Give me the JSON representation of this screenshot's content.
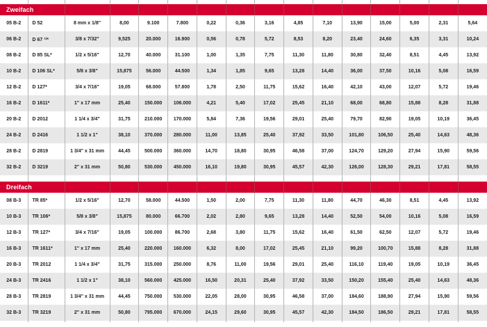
{
  "colors": {
    "accent_red": "#d40030",
    "header_divider": "#ac3a47",
    "row_alt": "#e8e8e8",
    "grid_line": "#b3b3b3",
    "text": "#1c1c1c",
    "header_text": "#ffffff"
  },
  "sections": [
    {
      "label": "Zweifach",
      "rows": [
        [
          "05 B-2",
          "D 52",
          "8 mm x 1/8\"",
          "8,00",
          "9.100",
          "7.800",
          "0,22",
          "0,36",
          "3,16",
          "4,85",
          "7,10",
          "13,90",
          "15,00",
          "5,00",
          "2,31",
          "5,64"
        ],
        [
          "06 B-2",
          "D 67 ¹⁾*",
          "3/8 x 7/32\"",
          "9,525",
          "20.000",
          "16.900",
          "0,56",
          "0,78",
          "5,72",
          "8,53",
          "8,20",
          "23,40",
          "24,60",
          "6,35",
          "3,31",
          "10,24"
        ],
        [
          "08 B-2",
          "D 85 SL*",
          "1/2 x 5/16\"",
          "12,70",
          "40.000",
          "31.100",
          "1,00",
          "1,35",
          "7,75",
          "11,30",
          "11,80",
          "30,80",
          "32,40",
          "8,51",
          "4,45",
          "13,92"
        ],
        [
          "10 B-2",
          "D 106 SL*",
          "5/8 x 3/8\"",
          "15,875",
          "56.000",
          "44.500",
          "1,34",
          "1,85",
          "9,65",
          "13,28",
          "14,40",
          "36,00",
          "37,50",
          "10,16",
          "5,08",
          "16,59"
        ],
        [
          "12 B-2",
          "D 127*",
          "3/4 x 7/16\"",
          "19,05",
          "68.000",
          "57.800",
          "1,78",
          "2,50",
          "11,75",
          "15,62",
          "16,40",
          "42,10",
          "43,00",
          "12,07",
          "5,72",
          "19,46"
        ],
        [
          "16 B-2",
          "D 1611*",
          "1\" x 17 mm",
          "25,40",
          "150.000",
          "106.000",
          "4,21",
          "5,40",
          "17,02",
          "25,45",
          "21,10",
          "68,00",
          "68,80",
          "15,88",
          "8,28",
          "31,88"
        ],
        [
          "20 B-2",
          "D 2012",
          "1 1/4 x 3/4\"",
          "31,75",
          "210.000",
          "170.000",
          "5,84",
          "7,36",
          "19,56",
          "29,01",
          "25,40",
          "79,70",
          "82,90",
          "19,05",
          "10,19",
          "36,45"
        ],
        [
          "24 B-2",
          "D 2416",
          "1 1/2 x 1\"",
          "38,10",
          "370.000",
          "280.000",
          "11,00",
          "13,85",
          "25,40",
          "37,92",
          "33,50",
          "101,80",
          "106,50",
          "25,40",
          "14,63",
          "48,36"
        ],
        [
          "28 B-2",
          "D 2819",
          "1 3/4\" x 31 mm",
          "44,45",
          "500.000",
          "360.000",
          "14,70",
          "18,80",
          "30,95",
          "46,58",
          "37,00",
          "124,70",
          "129,20",
          "27,94",
          "15,90",
          "59,56"
        ],
        [
          "32 B-2",
          "D 3219",
          "2\" x 31 mm",
          "50,80",
          "530.000",
          "450.000",
          "16,10",
          "19,80",
          "30,95",
          "45,57",
          "42,30",
          "126,00",
          "128,30",
          "29,21",
          "17,81",
          "58,55"
        ]
      ]
    },
    {
      "label": "Dreifach",
      "rows": [
        [
          "08 B-3",
          "TR 85*",
          "1/2 x 5/16\"",
          "12,70",
          "58.000",
          "44.500",
          "1,50",
          "2,00",
          "7,75",
          "11,30",
          "11,80",
          "44,70",
          "46,30",
          "8,51",
          "4,45",
          "13,92"
        ],
        [
          "10 B-3",
          "TR 106*",
          "5/8 x 3/8\"",
          "15,875",
          "80.000",
          "66.700",
          "2,02",
          "2,80",
          "9,65",
          "13,28",
          "14,40",
          "52,50",
          "54,00",
          "10,16",
          "5,08",
          "16,59"
        ],
        [
          "12 B-3",
          "TR 127*",
          "3/4 x 7/16\"",
          "19,05",
          "100.000",
          "86.700",
          "2,68",
          "3,80",
          "11,75",
          "15,62",
          "16,40",
          "61,50",
          "62,50",
          "12,07",
          "5,72",
          "19,46"
        ],
        [
          "16 B-3",
          "TR 1611*",
          "1\" x 17 mm",
          "25,40",
          "220.000",
          "160.000",
          "6,32",
          "8,00",
          "17,02",
          "25,45",
          "21,10",
          "99,20",
          "100,70",
          "15,88",
          "8,28",
          "31,88"
        ],
        [
          "20 B-3",
          "TR 2012",
          "1 1/4 x 3/4\"",
          "31,75",
          "315.000",
          "250.000",
          "8,76",
          "11,00",
          "19,56",
          "29,01",
          "25,40",
          "116,10",
          "119,40",
          "19,05",
          "10,19",
          "36,45"
        ],
        [
          "24 B-3",
          "TR 2416",
          "1 1/2 x 1\"",
          "38,10",
          "560.000",
          "425.000",
          "16,50",
          "20,31",
          "25,40",
          "37,92",
          "33,50",
          "150,20",
          "155,40",
          "25,40",
          "14,63",
          "48,36"
        ],
        [
          "28 B-3",
          "TR 2819",
          "1 3/4\" x 31 mm",
          "44,45",
          "750.000",
          "530.000",
          "22,05",
          "28,00",
          "30,95",
          "46,58",
          "37,00",
          "184,60",
          "188,90",
          "27,94",
          "15,90",
          "59,56"
        ],
        [
          "32 B-3",
          "TR 3219",
          "2\" x 31 mm",
          "50,80",
          "795.000",
          "670.000",
          "24,15",
          "29,60",
          "30,95",
          "45,57",
          "42,30",
          "184,50",
          "186,50",
          "29,21",
          "17,81",
          "58,55"
        ]
      ]
    }
  ]
}
